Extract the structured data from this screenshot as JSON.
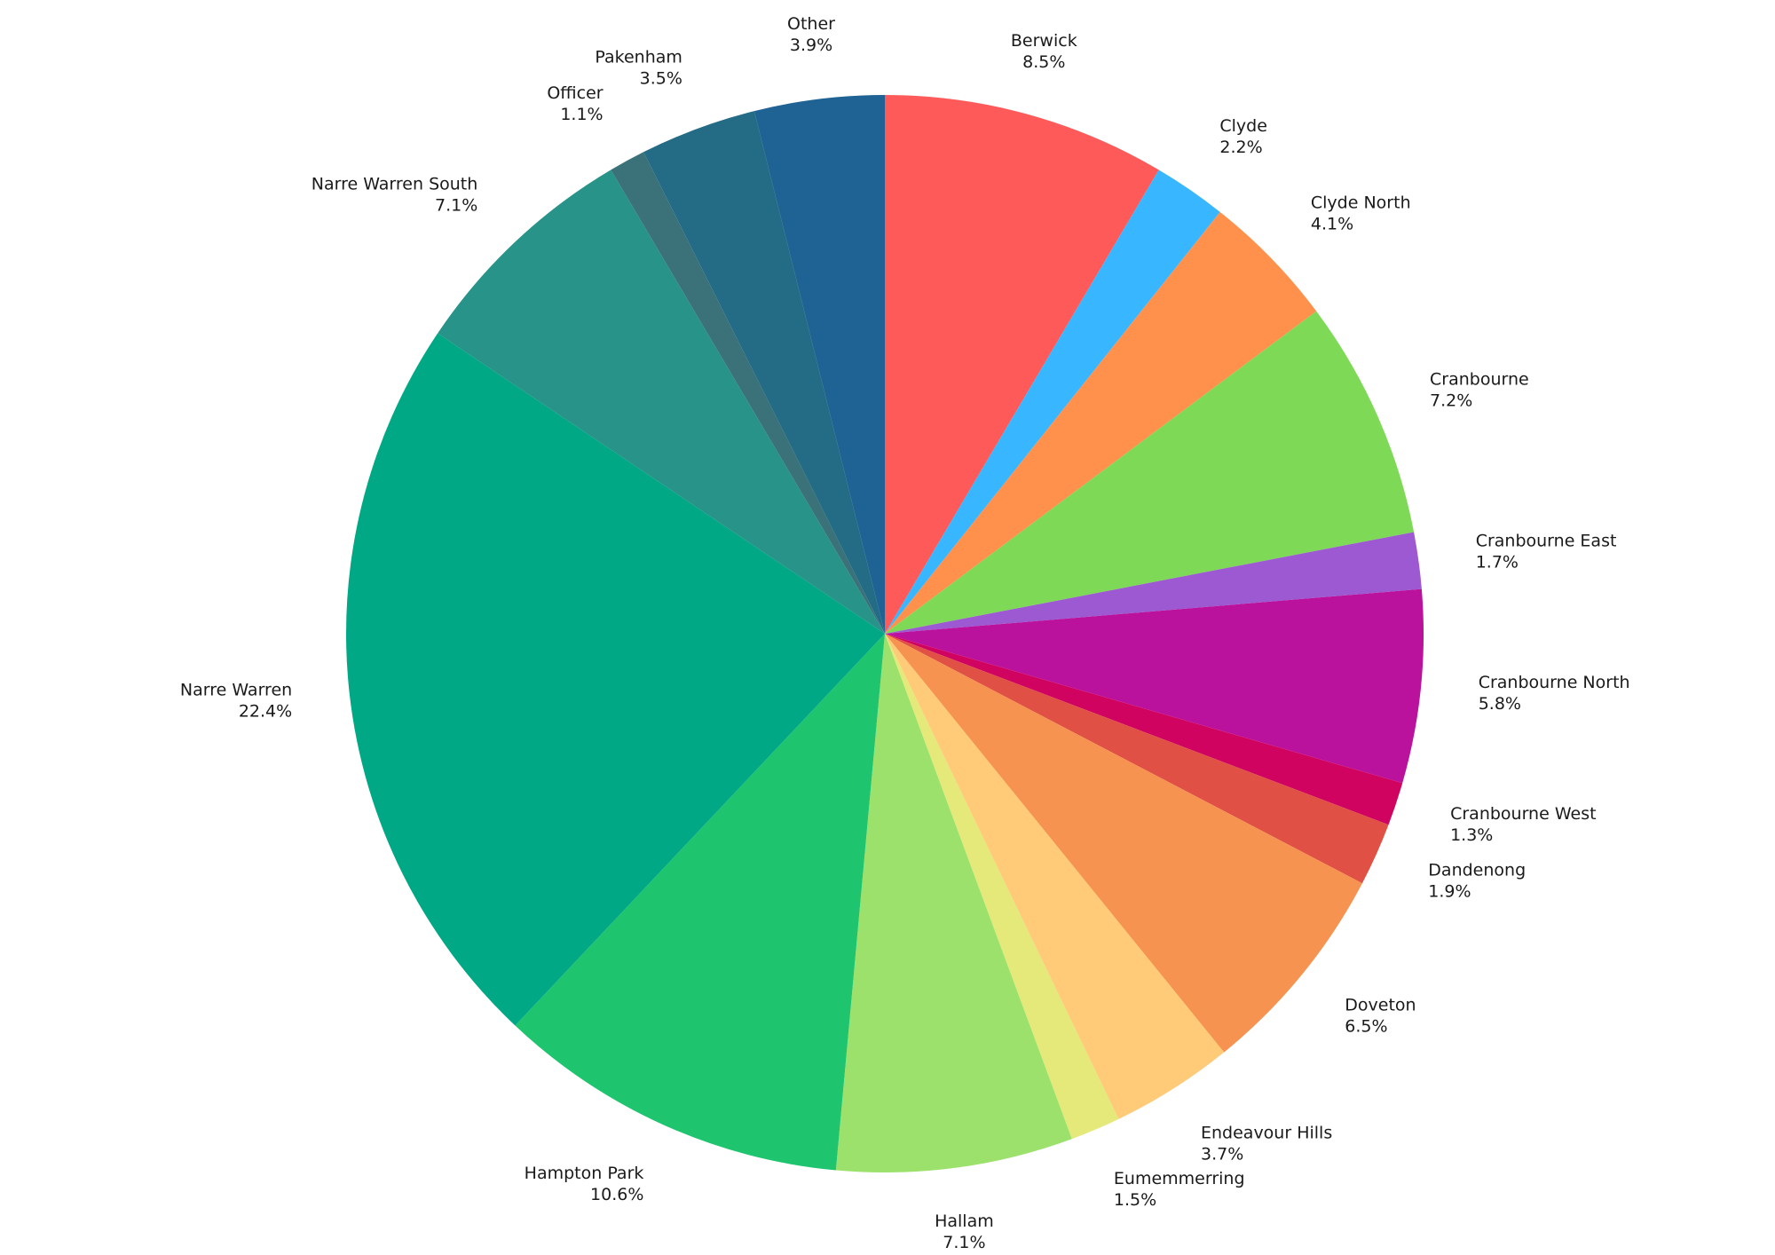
{
  "chart_data": {
    "type": "pie",
    "title": "",
    "start": "12 o'clock",
    "direction": "clockwise",
    "legend": "none (labels outside slices)",
    "slices": [
      {
        "label": "Berwick",
        "value": 8.5,
        "value_label": "8.5%",
        "color": "#ff5a5a"
      },
      {
        "label": "Clyde",
        "value": 2.2,
        "value_label": "2.2%",
        "color": "#38b6ff"
      },
      {
        "label": "Clyde North",
        "value": 4.1,
        "value_label": "4.1%",
        "color": "#ff914d"
      },
      {
        "label": "Cranbourne",
        "value": 7.2,
        "value_label": "7.2%",
        "color": "#7ed957"
      },
      {
        "label": "Cranbourne East",
        "value": 1.7,
        "value_label": "1.7%",
        "color": "#9c59d1"
      },
      {
        "label": "Cranbourne North",
        "value": 5.8,
        "value_label": "5.8%",
        "color": "#bb129d"
      },
      {
        "label": "Cranbourne West",
        "value": 1.3,
        "value_label": "1.3%",
        "color": "#d10361"
      },
      {
        "label": "Dandenong",
        "value": 1.9,
        "value_label": "1.9%",
        "color": "#e05044"
      },
      {
        "label": "Doveton",
        "value": 6.5,
        "value_label": "6.5%",
        "color": "#f69350"
      },
      {
        "label": "Endeavour Hills",
        "value": 3.7,
        "value_label": "3.7%",
        "color": "#ffcb78"
      },
      {
        "label": "Eumemmerring",
        "value": 1.5,
        "value_label": "1.5%",
        "color": "#e4e97a"
      },
      {
        "label": "Hallam",
        "value": 7.1,
        "value_label": "7.1%",
        "color": "#9de16d"
      },
      {
        "label": "Hampton Park",
        "value": 10.6,
        "value_label": "10.6%",
        "color": "#1ec46e"
      },
      {
        "label": "Narre Warren",
        "value": 22.4,
        "value_label": "22.4%",
        "color": "#00a886"
      },
      {
        "label": "Narre Warren South",
        "value": 7.1,
        "value_label": "7.1%",
        "color": "#279389"
      },
      {
        "label": "Officer",
        "value": 1.1,
        "value_label": "1.1%",
        "color": "#3b727a"
      },
      {
        "label": "Pakenham",
        "value": 3.5,
        "value_label": "3.5%",
        "color": "#246b85"
      },
      {
        "label": "Other",
        "value": 3.9,
        "value_label": "3.9%",
        "color": "#1f6294"
      }
    ]
  }
}
